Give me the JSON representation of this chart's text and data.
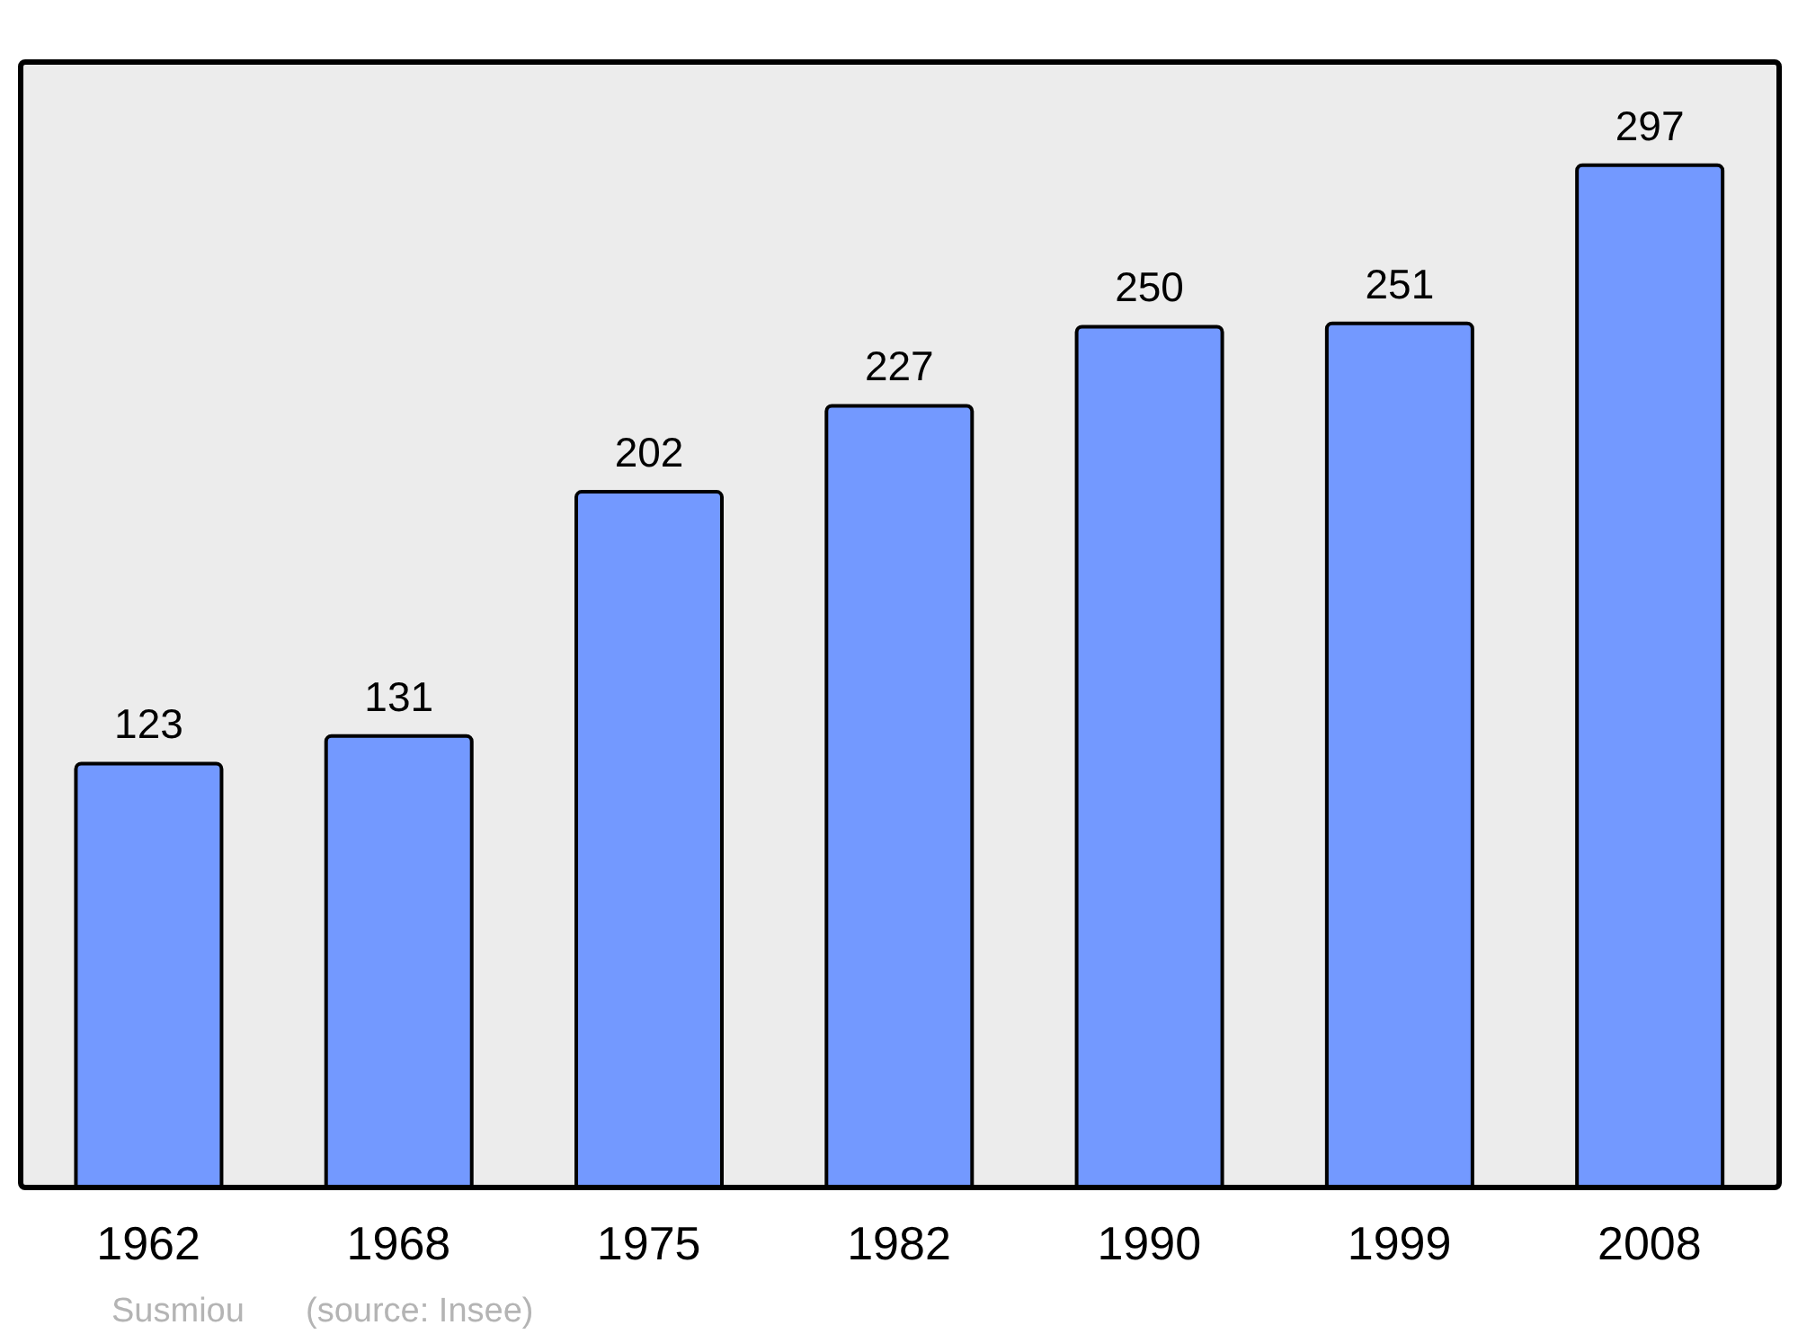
{
  "chart_data": {
    "type": "bar",
    "categories": [
      "1962",
      "1968",
      "1975",
      "1982",
      "1990",
      "1999",
      "2008"
    ],
    "values": [
      123,
      131,
      202,
      227,
      250,
      251,
      297
    ],
    "color": "#7399ff",
    "data_labels": true,
    "annotations": [
      "Susmiou",
      "(source: Insee)"
    ]
  }
}
